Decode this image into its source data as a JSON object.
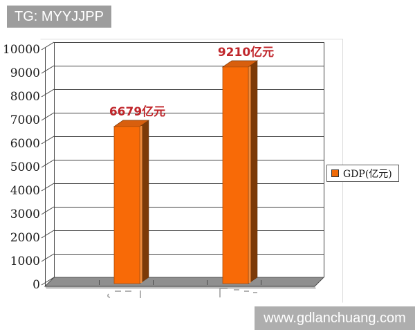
{
  "watermarks": {
    "top_left": "TG: MYYJJPP",
    "bottom_right": "www.gdlanchuang.com"
  },
  "legend": {
    "label": "GDP(亿元)",
    "swatch_color": "#f06a07"
  },
  "chart_data": {
    "type": "bar",
    "style": "3d-column",
    "title": "",
    "xlabel": "",
    "ylabel": "",
    "categories": [
      "",
      ""
    ],
    "values": [
      6679,
      9210
    ],
    "value_labels": [
      "6679亿元",
      "9210亿元"
    ],
    "ylim": [
      0,
      10000
    ],
    "ytick_step": 1000,
    "yticks": [
      0,
      1000,
      2000,
      3000,
      4000,
      5000,
      6000,
      7000,
      8000,
      9000,
      10000
    ],
    "grid": true,
    "legend_entries": [
      "GDP(亿元)"
    ],
    "legend_position": "right",
    "bar_color": "#f86a07",
    "bar_edge_highlight": "#ef8c3e",
    "bar_side_color": "#7c3a08",
    "bar_top_color": "#d85f0e",
    "value_label_color": "#c0262b",
    "gridline_color": "#3f3f3f",
    "floor_color": "#8f8f8f",
    "wall_color": "#ffffff"
  }
}
